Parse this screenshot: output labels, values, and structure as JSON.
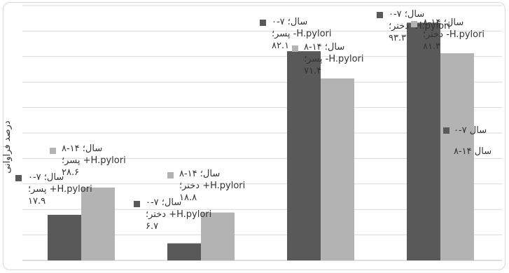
{
  "chart_data": {
    "type": "bar",
    "title": "",
    "xlabel": "",
    "ylabel": "درصد فراوانی",
    "ylim": [
      0,
      100
    ],
    "grid": true,
    "legend_position": "right",
    "categories": [
      "پسر؛ +H.pylori",
      "دختر؛ +H.pylori",
      "پسر؛ -H.pylori",
      "دختر؛ -H.pylori"
    ],
    "series": [
      {
        "name": "۰-۷ سال",
        "color": "#595959",
        "values": [
          17.9,
          6.7,
          82.1,
          93.3
        ]
      },
      {
        "name": "۸-۱۴ سال",
        "color": "#b3b3b3",
        "values": [
          28.6,
          18.8,
          71.4,
          81.3
        ]
      }
    ],
    "data_labels": [
      [
        "۰-۷ سال؛",
        "پسر؛ +H.pylori",
        "۱۷.۹"
      ],
      [
        "۸-۱۴ سال؛",
        "پسر؛ +H.pylori",
        "۲۸.۶"
      ],
      [
        "۰-۷ سال؛",
        "دختر؛ +H.pylori",
        "۶.۷"
      ],
      [
        "۸-۱۴ سال؛",
        "دختر؛ +H.pylori",
        "۱۸.۸"
      ],
      [
        "۰-۷ سال؛",
        "پسر؛ -H.pylori",
        "۸۲.۱"
      ],
      [
        "۸-۱۴ سال؛",
        "پسر؛ -H.pylori",
        "۷۱.۴"
      ],
      [
        "۰-۷ سال؛",
        "دختر؛ -H.pylori",
        "۹۳.۳"
      ],
      [
        "۸-۱۴ سال؛",
        "دختر؛ -H.pylori",
        "۸۱.۳"
      ]
    ]
  }
}
